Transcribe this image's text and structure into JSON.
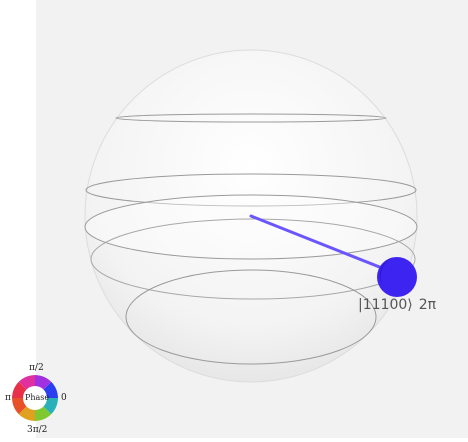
{
  "state": {
    "ket": "|11100⟩",
    "phase": "2π",
    "color": "#3e24f0"
  },
  "phase_wheel": {
    "center_label": "Phase",
    "top": "π/2",
    "left": "π",
    "right": "0",
    "bottom": "3π/2"
  },
  "colors": {
    "background": "#f2f2f2",
    "sphere_edge": "#d0d0d0",
    "ring": "#9a9a9a"
  }
}
